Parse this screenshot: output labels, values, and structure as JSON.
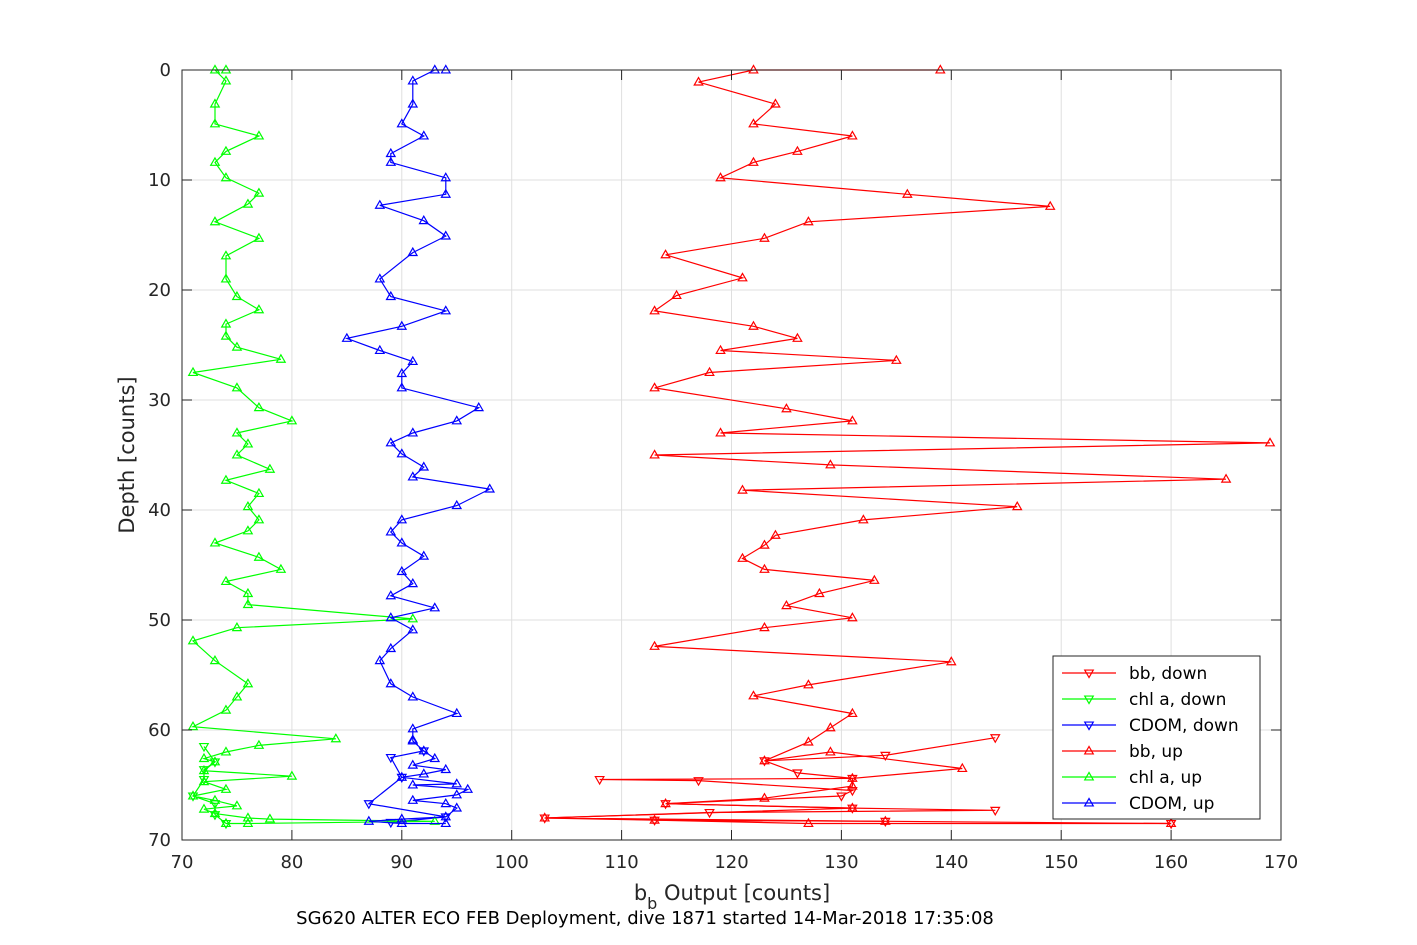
{
  "chart_data": {
    "type": "line",
    "xlabel_main": "b",
    "xlabel_sub": "b",
    "xlabel_rest": " Output [counts]",
    "ylabel": "Depth [counts]",
    "caption": "SG620 ALTER ECO FEB Deployment, dive 1871 started 14-Mar-2018 17:35:08",
    "xlim": [
      70,
      170
    ],
    "ylim": [
      0,
      70
    ],
    "y_reversed": true,
    "grid": true,
    "legend_position": "bottom-right",
    "xticks": [
      "70",
      "80",
      "90",
      "100",
      "110",
      "120",
      "130",
      "140",
      "150",
      "160",
      "170"
    ],
    "yticks": [
      "0",
      "10",
      "20",
      "30",
      "40",
      "50",
      "60",
      "70"
    ],
    "series": [
      {
        "name": "bb, down",
        "color": "#ff0000",
        "marker": "triangle-down",
        "points": [
          [
            144,
            60.7
          ],
          [
            134,
            62.3
          ],
          [
            123,
            62.8
          ],
          [
            126,
            63.9
          ],
          [
            131,
            64.4
          ],
          [
            108,
            64.5
          ],
          [
            117,
            64.6
          ],
          [
            131,
            65.5
          ],
          [
            130,
            66.0
          ],
          [
            114,
            66.7
          ],
          [
            131,
            67.1
          ],
          [
            144,
            67.3
          ],
          [
            118,
            67.5
          ],
          [
            103,
            68.0
          ],
          [
            113,
            68.2
          ],
          [
            134,
            68.3
          ],
          [
            160,
            68.5
          ]
        ]
      },
      {
        "name": "chl a, down",
        "color": "#00ff00",
        "marker": "triangle-down",
        "points": [
          [
            72,
            61.5
          ],
          [
            73,
            62.9
          ],
          [
            72,
            63.6
          ],
          [
            72,
            64.5
          ],
          [
            71,
            66.0
          ],
          [
            73,
            66.7
          ],
          [
            73,
            67.7
          ],
          [
            74,
            68.5
          ]
        ]
      },
      {
        "name": "CDOM, down",
        "color": "#0000ff",
        "marker": "triangle-down",
        "points": [
          [
            92,
            61.9
          ],
          [
            89,
            62.5
          ],
          [
            90,
            64.3
          ],
          [
            87,
            66.7
          ],
          [
            94,
            67.9
          ],
          [
            89,
            68.4
          ]
        ]
      },
      {
        "name": "bb, up",
        "color": "#ff0000",
        "marker": "triangle-up",
        "points": [
          [
            160,
            68.5
          ],
          [
            127,
            68.5
          ],
          [
            113,
            68.2
          ],
          [
            134,
            68.3
          ],
          [
            103,
            68.0
          ],
          [
            131,
            67.1
          ],
          [
            114,
            66.7
          ],
          [
            123,
            66.2
          ],
          [
            131,
            65.1
          ],
          [
            131,
            64.4
          ],
          [
            141,
            63.5
          ],
          [
            129,
            62.0
          ],
          [
            123,
            62.8
          ],
          [
            127,
            61.1
          ],
          [
            129,
            59.8
          ],
          [
            131,
            58.5
          ],
          [
            122,
            56.9
          ],
          [
            127,
            55.9
          ],
          [
            140,
            53.8
          ],
          [
            113,
            52.4
          ],
          [
            123,
            50.7
          ],
          [
            131,
            49.8
          ],
          [
            125,
            48.7
          ],
          [
            128,
            47.6
          ],
          [
            133,
            46.4
          ],
          [
            123,
            45.4
          ],
          [
            121,
            44.4
          ],
          [
            123,
            43.2
          ],
          [
            124,
            42.3
          ],
          [
            132,
            40.9
          ],
          [
            146,
            39.7
          ],
          [
            121,
            38.2
          ],
          [
            165,
            37.2
          ],
          [
            129,
            35.9
          ],
          [
            113,
            35.0
          ],
          [
            169,
            33.9
          ],
          [
            119,
            33.0
          ],
          [
            131,
            31.9
          ],
          [
            125,
            30.8
          ],
          [
            113,
            28.9
          ],
          [
            118,
            27.5
          ],
          [
            135,
            26.4
          ],
          [
            119,
            25.5
          ],
          [
            126,
            24.4
          ],
          [
            122,
            23.3
          ],
          [
            113,
            21.9
          ],
          [
            115,
            20.5
          ],
          [
            121,
            18.9
          ],
          [
            114,
            16.8
          ],
          [
            123,
            15.3
          ],
          [
            127,
            13.8
          ],
          [
            149,
            12.4
          ],
          [
            136,
            11.3
          ],
          [
            119,
            9.8
          ],
          [
            122,
            8.4
          ],
          [
            126,
            7.4
          ],
          [
            131,
            6.0
          ],
          [
            122,
            4.9
          ],
          [
            124,
            3.1
          ],
          [
            117,
            1.1
          ],
          [
            122,
            0
          ],
          [
            139,
            0
          ]
        ]
      },
      {
        "name": "chl a, up",
        "color": "#00ff00",
        "marker": "triangle-up",
        "points": [
          [
            74,
            68.5
          ],
          [
            76,
            68.5
          ],
          [
            93,
            68.3
          ],
          [
            78,
            68.1
          ],
          [
            76,
            68.0
          ],
          [
            73,
            67.6
          ],
          [
            72,
            67.2
          ],
          [
            75,
            66.9
          ],
          [
            73,
            66.4
          ],
          [
            71,
            66.0
          ],
          [
            74,
            65.4
          ],
          [
            72,
            64.7
          ],
          [
            80,
            64.2
          ],
          [
            72,
            63.7
          ],
          [
            73,
            62.9
          ],
          [
            72,
            62.6
          ],
          [
            74,
            62.0
          ],
          [
            77,
            61.4
          ],
          [
            84,
            60.8
          ],
          [
            71,
            59.7
          ],
          [
            74,
            58.2
          ],
          [
            75,
            57.0
          ],
          [
            76,
            55.8
          ],
          [
            73,
            53.7
          ],
          [
            71,
            51.9
          ],
          [
            75,
            50.7
          ],
          [
            91,
            49.9
          ],
          [
            76,
            48.6
          ],
          [
            76,
            47.6
          ],
          [
            74,
            46.5
          ],
          [
            79,
            45.4
          ],
          [
            77,
            44.3
          ],
          [
            73,
            43.0
          ],
          [
            76,
            41.9
          ],
          [
            77,
            40.9
          ],
          [
            76,
            39.7
          ],
          [
            77,
            38.5
          ],
          [
            74,
            37.3
          ],
          [
            78,
            36.3
          ],
          [
            75,
            35.0
          ],
          [
            76,
            34.0
          ],
          [
            75,
            33.0
          ],
          [
            80,
            31.9
          ],
          [
            77,
            30.7
          ],
          [
            75,
            28.9
          ],
          [
            71,
            27.5
          ],
          [
            79,
            26.3
          ],
          [
            75,
            25.2
          ],
          [
            74,
            24.2
          ],
          [
            74,
            23.1
          ],
          [
            77,
            21.8
          ],
          [
            75,
            20.6
          ],
          [
            74,
            19.0
          ],
          [
            74,
            16.9
          ],
          [
            77,
            15.3
          ],
          [
            73,
            13.8
          ],
          [
            76,
            12.2
          ],
          [
            77,
            11.2
          ],
          [
            74,
            9.8
          ],
          [
            73,
            8.4
          ],
          [
            74,
            7.4
          ],
          [
            77,
            6.0
          ],
          [
            73,
            4.9
          ],
          [
            73,
            3.1
          ],
          [
            74,
            1.0
          ],
          [
            73,
            0
          ],
          [
            74,
            0
          ]
        ]
      },
      {
        "name": "CDOM, up",
        "color": "#0000ff",
        "marker": "triangle-up",
        "points": [
          [
            94,
            68.5
          ],
          [
            90,
            68.5
          ],
          [
            87,
            68.3
          ],
          [
            90,
            68.1
          ],
          [
            94,
            67.9
          ],
          [
            95,
            67.1
          ],
          [
            94,
            66.7
          ],
          [
            91,
            66.4
          ],
          [
            95,
            65.9
          ],
          [
            96,
            65.4
          ],
          [
            91,
            65.0
          ],
          [
            95,
            64.9
          ],
          [
            90,
            64.3
          ],
          [
            92,
            64.0
          ],
          [
            94,
            63.6
          ],
          [
            91,
            63.2
          ],
          [
            93,
            62.6
          ],
          [
            92,
            61.9
          ],
          [
            91,
            61.0
          ],
          [
            91,
            60.9
          ],
          [
            91,
            59.9
          ],
          [
            95,
            58.5
          ],
          [
            91,
            57.0
          ],
          [
            89,
            55.8
          ],
          [
            88,
            53.7
          ],
          [
            89,
            52.6
          ],
          [
            91,
            50.9
          ],
          [
            89,
            49.8
          ],
          [
            93,
            48.9
          ],
          [
            89,
            47.8
          ],
          [
            91,
            46.7
          ],
          [
            90,
            45.6
          ],
          [
            92,
            44.2
          ],
          [
            90,
            43.0
          ],
          [
            89,
            42.0
          ],
          [
            90,
            40.9
          ],
          [
            95,
            39.6
          ],
          [
            98,
            38.1
          ],
          [
            91,
            37.0
          ],
          [
            92,
            36.1
          ],
          [
            90,
            34.9
          ],
          [
            89,
            33.9
          ],
          [
            91,
            33.0
          ],
          [
            95,
            31.9
          ],
          [
            97,
            30.7
          ],
          [
            90,
            28.9
          ],
          [
            90,
            27.6
          ],
          [
            91,
            26.5
          ],
          [
            88,
            25.5
          ],
          [
            85,
            24.4
          ],
          [
            90,
            23.3
          ],
          [
            94,
            21.9
          ],
          [
            89,
            20.6
          ],
          [
            88,
            19.0
          ],
          [
            91,
            16.6
          ],
          [
            94,
            15.1
          ],
          [
            92,
            13.7
          ],
          [
            88,
            12.3
          ],
          [
            94,
            11.3
          ],
          [
            94,
            9.8
          ],
          [
            89,
            8.4
          ],
          [
            89,
            7.6
          ],
          [
            92,
            6.0
          ],
          [
            90,
            4.9
          ],
          [
            91,
            3.1
          ],
          [
            91,
            1.0
          ],
          [
            93,
            0
          ],
          [
            94,
            0
          ]
        ]
      }
    ]
  }
}
